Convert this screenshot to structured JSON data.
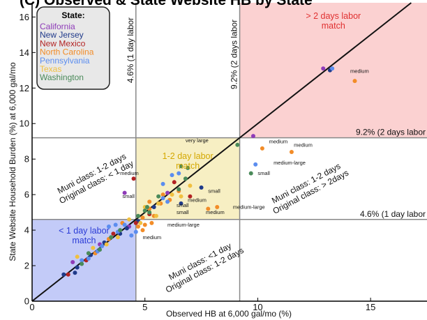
{
  "chart_data": {
    "type": "scatter",
    "title": "(C) Observed & State Website HB by State",
    "xlabel": "Observed HB at 6,000 gal/mo (%)",
    "ylabel": "State Website Household Burden (%) at 6,000 gal/mo",
    "xlim": [
      0,
      17.5
    ],
    "ylim": [
      0,
      16.8
    ],
    "x_ticks": [
      0,
      5,
      10,
      15
    ],
    "y_ticks": [
      0,
      2,
      4,
      6,
      8,
      10,
      12,
      14,
      16
    ],
    "grid": false,
    "legend": {
      "title": "State:",
      "placement": "top-left",
      "entries": [
        {
          "name": "California",
          "color": "#8e3bb8"
        },
        {
          "name": "New Jersey",
          "color": "#1f3a8a"
        },
        {
          "name": "New Mexico",
          "color": "#b22222"
        },
        {
          "name": "North Carolina",
          "color": "#f28c28"
        },
        {
          "name": "Pennsylvania",
          "color": "#5b8def"
        },
        {
          "name": "Texas",
          "color": "#f0c040"
        },
        {
          "name": "Washington",
          "color": "#4a8a5a"
        }
      ]
    },
    "thresholds": {
      "one_day": 4.6,
      "two_days": 9.2
    },
    "threshold_labels": {
      "v_one": "4.6% (1 day labor",
      "v_two": "9.2% (2 days labor",
      "h_one": "4.6% (1 day labor",
      "h_two": "9.2% (2 days labor"
    },
    "regions": [
      {
        "label": "< 1 day labor match",
        "lines": [
          "< 1 day labor",
          "match"
        ],
        "color": "#7b8cf0",
        "text_color": "#2a3bd6"
      },
      {
        "label": "1-2 day labor match",
        "lines": [
          "1-2 day labor",
          "match"
        ],
        "color": "#eedb7a",
        "text_color": "#d4a800"
      },
      {
        "label": "> 2 days labor match",
        "lines": [
          "> 2 days labor",
          "match"
        ],
        "color": "#f79a9a",
        "text_color": "#e03030"
      }
    ],
    "annotations": [
      {
        "lines": [
          "Muni class: 1-2 days",
          "Original class: < 1 day"
        ]
      },
      {
        "lines": [
          "Muni class: 1-2 days",
          "Original class: > 2days"
        ]
      },
      {
        "lines": [
          "Muni class: <1 day",
          "Original class: 1-2 days"
        ]
      }
    ],
    "point_labels": [
      {
        "text": "very large",
        "x": 6.8,
        "y": 8.95
      },
      {
        "text": "medium",
        "x": 10.5,
        "y": 8.9
      },
      {
        "text": "medium",
        "x": 11.6,
        "y": 8.7
      },
      {
        "text": "medium",
        "x": 3.9,
        "y": 7.1
      },
      {
        "text": "medium-large",
        "x": 10.7,
        "y": 7.7
      },
      {
        "text": "small",
        "x": 10.0,
        "y": 7.1
      },
      {
        "text": "small",
        "x": 7.8,
        "y": 6.1
      },
      {
        "text": "small",
        "x": 4.0,
        "y": 5.8
      },
      {
        "text": "medium",
        "x": 6.9,
        "y": 5.6
      },
      {
        "text": "small",
        "x": 6.4,
        "y": 5.3
      },
      {
        "text": "small",
        "x": 6.4,
        "y": 4.9
      },
      {
        "text": "medium-large",
        "x": 8.9,
        "y": 5.2
      },
      {
        "text": "medium",
        "x": 7.7,
        "y": 4.9
      },
      {
        "text": "medium-large",
        "x": 6.0,
        "y": 4.2
      },
      {
        "text": "medium",
        "x": 4.9,
        "y": 3.5
      },
      {
        "text": "medium",
        "x": 14.1,
        "y": 12.85
      }
    ],
    "series": [
      {
        "name": "California",
        "color": "#8e3bb8",
        "points": [
          [
            12.9,
            13.1
          ],
          [
            4.1,
            6.1
          ],
          [
            9.8,
            9.3
          ],
          [
            1.8,
            2.2
          ],
          [
            3.0,
            3.2
          ],
          [
            4.3,
            4.2
          ],
          [
            6.0,
            6.1
          ]
        ]
      },
      {
        "name": "New Jersey",
        "color": "#1f3a8a",
        "points": [
          [
            13.2,
            13.0
          ],
          [
            7.5,
            6.4
          ],
          [
            6.6,
            5.5
          ],
          [
            4.7,
            4.5
          ],
          [
            1.4,
            1.5
          ],
          [
            2.0,
            1.9
          ],
          [
            2.6,
            2.6
          ],
          [
            3.2,
            3.3
          ],
          [
            3.9,
            3.8
          ],
          [
            4.2,
            4.1
          ],
          [
            5.4,
            5.3
          ],
          [
            1.9,
            1.6
          ]
        ]
      },
      {
        "name": "New Mexico",
        "color": "#b22222",
        "points": [
          [
            4.5,
            6.9
          ],
          [
            6.3,
            6.7
          ],
          [
            7.0,
            5.9
          ],
          [
            3.6,
            3.8
          ],
          [
            2.4,
            2.3
          ],
          [
            1.6,
            1.5
          ],
          [
            5.2,
            4.9
          ],
          [
            4.6,
            4.4
          ]
        ]
      },
      {
        "name": "North Carolina",
        "color": "#f28c28",
        "points": [
          [
            14.3,
            12.4
          ],
          [
            10.2,
            8.6
          ],
          [
            11.5,
            8.4
          ],
          [
            8.2,
            5.3
          ],
          [
            7.8,
            5.2
          ],
          [
            5.0,
            4.3
          ],
          [
            5.2,
            5.6
          ],
          [
            5.7,
            5.5
          ],
          [
            6.1,
            5.7
          ],
          [
            4.7,
            4.2
          ],
          [
            4.0,
            4.4
          ],
          [
            5.4,
            4.8
          ],
          [
            2.8,
            2.7
          ],
          [
            3.4,
            3.5
          ],
          [
            5.2,
            5.2
          ],
          [
            4.9,
            4.0
          ],
          [
            4.9,
            4.7
          ],
          [
            5.8,
            6.0
          ],
          [
            6.5,
            6.2
          ],
          [
            5.3,
            4.4
          ]
        ]
      },
      {
        "name": "Pennsylvania",
        "color": "#5b8def",
        "points": [
          [
            13.3,
            13.1
          ],
          [
            9.9,
            7.7
          ],
          [
            5.8,
            6.6
          ],
          [
            6.2,
            7.1
          ],
          [
            6.5,
            7.2
          ],
          [
            3.4,
            4.2
          ],
          [
            4.4,
            3.7
          ],
          [
            4.6,
            3.9
          ],
          [
            3.8,
            3.9
          ],
          [
            3.1,
            3.1
          ],
          [
            2.5,
            2.4
          ],
          [
            2.2,
            2.3
          ],
          [
            5.8,
            5.8
          ],
          [
            6.0,
            5.6
          ],
          [
            4.1,
            4.3
          ],
          [
            3.7,
            4.3
          ],
          [
            2.9,
            2.8
          ]
        ]
      },
      {
        "name": "Texas",
        "color": "#f0c040",
        "points": [
          [
            7.0,
            6.5
          ],
          [
            6.6,
            5.9
          ],
          [
            5.6,
            5.5
          ],
          [
            4.3,
            4.6
          ],
          [
            3.3,
            3.2
          ],
          [
            2.7,
            3.0
          ],
          [
            2.0,
            2.5
          ],
          [
            4.8,
            4.4
          ],
          [
            5.5,
            4.8
          ],
          [
            5.0,
            5.3
          ],
          [
            6.2,
            6.0
          ],
          [
            3.8,
            3.6
          ]
        ]
      },
      {
        "name": "Washington",
        "color": "#4a8a5a",
        "points": [
          [
            9.1,
            8.8
          ],
          [
            9.7,
            7.2
          ],
          [
            6.9,
            7.5
          ],
          [
            5.0,
            5.1
          ],
          [
            5.6,
            5.9
          ],
          [
            6.8,
            6.9
          ],
          [
            3.5,
            3.6
          ],
          [
            3.0,
            2.9
          ],
          [
            2.5,
            2.7
          ],
          [
            2.2,
            2.1
          ],
          [
            5.1,
            5.3
          ],
          [
            4.7,
            4.8
          ],
          [
            6.5,
            6.3
          ],
          [
            3.9,
            4.0
          ],
          [
            6.6,
            7.6
          ],
          [
            5.2,
            5.0
          ]
        ]
      }
    ]
  }
}
